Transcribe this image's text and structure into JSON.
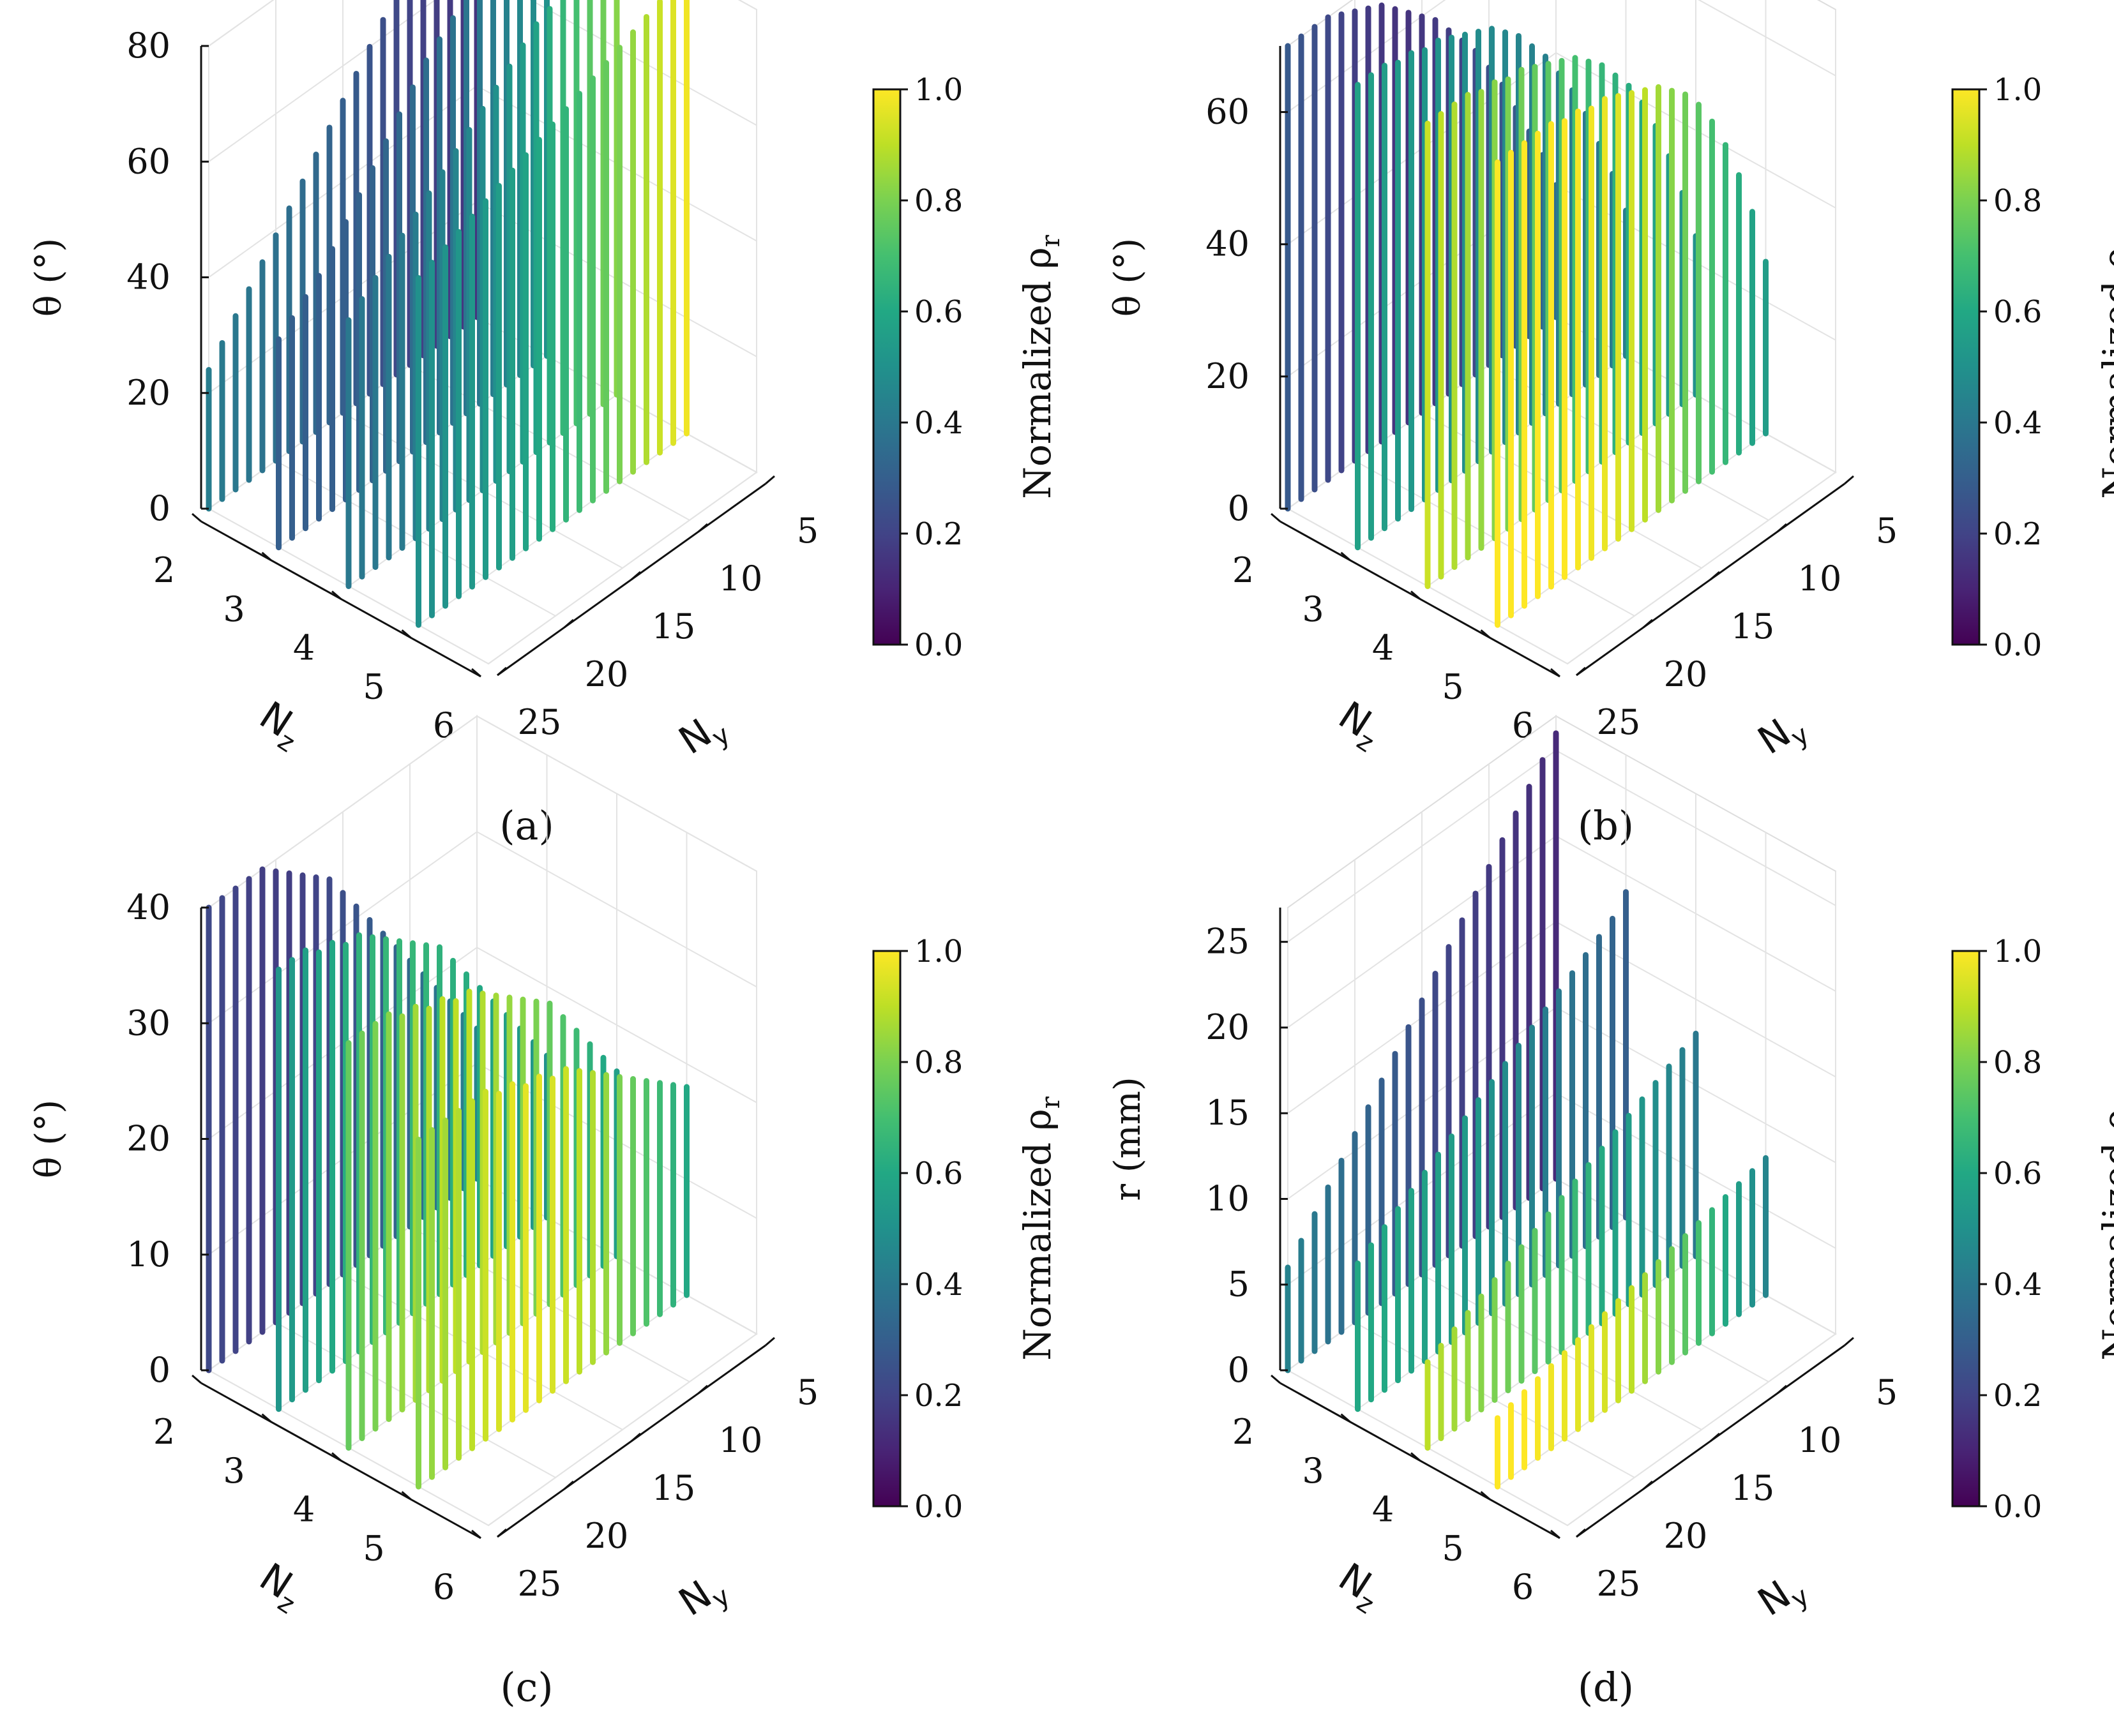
{
  "chart_data": [
    {
      "type": "3d-bar",
      "panel_label": "(a)",
      "title": "",
      "xlabel": "N",
      "xlabel_sub": "y",
      "ylabel": "N",
      "ylabel_sub": "z",
      "zlabel": "θ (°)",
      "zlim": [
        0,
        80
      ],
      "z_ticks": [
        "0",
        "20",
        "40",
        "60",
        "80"
      ],
      "ny_ticks": [
        "5",
        "10",
        "15",
        "20",
        "25"
      ],
      "nz_ticks": [
        "2",
        "3",
        "4",
        "5",
        "6"
      ],
      "colorbar": {
        "label": "Normalized ρ",
        "label_sub": "r",
        "ticks": [
          "0.0",
          "0.2",
          "0.4",
          "0.6",
          "0.8",
          "1.0"
        ]
      },
      "series": [
        {
          "name": "Nz=2",
          "ny_range": [
            5,
            25
          ],
          "values": [
            80,
            78,
            76,
            74,
            72,
            69,
            66,
            63,
            60,
            57,
            54,
            51,
            48,
            45,
            42,
            39,
            36,
            33,
            30,
            27,
            24
          ],
          "rho": [
            0.15,
            0.16,
            0.17,
            0.18,
            0.19,
            0.2,
            0.22,
            0.24,
            0.26,
            0.28,
            0.3,
            0.32,
            0.34,
            0.35,
            0.36,
            0.37,
            0.38,
            0.39,
            0.4,
            0.41,
            0.42
          ]
        },
        {
          "name": "Nz=3",
          "ny_range": [
            5,
            25
          ],
          "values": [
            80,
            79,
            78,
            77,
            76,
            74,
            72,
            70,
            68,
            66,
            63,
            60,
            57,
            54,
            51,
            48,
            45,
            42,
            40,
            38,
            36
          ],
          "rho": [
            0.5,
            0.48,
            0.46,
            0.44,
            0.42,
            0.4,
            0.39,
            0.38,
            0.37,
            0.36,
            0.35,
            0.34,
            0.33,
            0.32,
            0.31,
            0.3,
            0.3,
            0.3,
            0.3,
            0.3,
            0.3
          ]
        },
        {
          "name": "Nz=4",
          "ny_range": [
            5,
            25
          ],
          "values": [
            80,
            79,
            78,
            77,
            76,
            75,
            74,
            72,
            70,
            68,
            66,
            64,
            62,
            60,
            58,
            56,
            54,
            52,
            50,
            48,
            46
          ],
          "rho": [
            0.82,
            0.78,
            0.74,
            0.7,
            0.66,
            0.62,
            0.58,
            0.55,
            0.52,
            0.5,
            0.48,
            0.46,
            0.45,
            0.44,
            0.43,
            0.42,
            0.41,
            0.4,
            0.4,
            0.4,
            0.4
          ]
        },
        {
          "name": "Nz=5",
          "ny_range": [
            5,
            25
          ],
          "values": [
            80,
            79,
            78,
            77,
            76,
            75,
            74,
            73,
            72,
            71,
            70,
            69,
            68,
            67,
            66,
            65,
            64,
            63,
            62,
            61,
            60
          ],
          "rho": [
            0.98,
            0.95,
            0.92,
            0.88,
            0.84,
            0.8,
            0.76,
            0.72,
            0.68,
            0.65,
            0.62,
            0.6,
            0.58,
            0.56,
            0.55,
            0.54,
            0.53,
            0.52,
            0.51,
            0.5,
            0.5
          ]
        }
      ]
    },
    {
      "type": "3d-bar",
      "panel_label": "(b)",
      "title": "",
      "xlabel": "N",
      "xlabel_sub": "y",
      "ylabel": "N",
      "ylabel_sub": "z",
      "zlabel": "θ (°)",
      "zlim": [
        0,
        70
      ],
      "z_ticks": [
        "0",
        "20",
        "40",
        "60"
      ],
      "ny_ticks": [
        "5",
        "10",
        "15",
        "20",
        "25"
      ],
      "nz_ticks": [
        "2",
        "3",
        "4",
        "5",
        "6"
      ],
      "colorbar": {
        "label": "Normalized ρ",
        "label_sub": "r",
        "ticks": [
          "0.0",
          "0.2",
          "0.4",
          "0.6",
          "0.8",
          "1.0"
        ]
      },
      "series": [
        {
          "name": "Nz=2",
          "ny_range": [
            5,
            25
          ],
          "values": [
            20,
            26,
            31,
            36,
            41,
            45,
            49,
            52,
            55,
            58,
            60,
            62,
            64,
            66,
            67,
            68,
            69,
            70,
            70,
            70,
            70
          ],
          "rho": [
            0.35,
            0.32,
            0.3,
            0.28,
            0.26,
            0.24,
            0.22,
            0.2,
            0.18,
            0.17,
            0.16,
            0.15,
            0.15,
            0.16,
            0.17,
            0.18,
            0.2,
            0.22,
            0.24,
            0.26,
            0.28
          ]
        },
        {
          "name": "Nz=3",
          "ny_range": [
            5,
            25
          ],
          "values": [
            22,
            29,
            35,
            41,
            46,
            50,
            54,
            57,
            60,
            62,
            64,
            65,
            66,
            67,
            68,
            68,
            69,
            69,
            70,
            70,
            70
          ],
          "rho": [
            0.42,
            0.41,
            0.4,
            0.4,
            0.41,
            0.42,
            0.43,
            0.44,
            0.45,
            0.46,
            0.47,
            0.48,
            0.49,
            0.5,
            0.51,
            0.52,
            0.53,
            0.54,
            0.55,
            0.56,
            0.57
          ]
        },
        {
          "name": "Nz=4",
          "ny_range": [
            5,
            25
          ],
          "values": [
            24,
            32,
            39,
            45,
            50,
            54,
            57,
            60,
            62,
            64,
            65,
            66,
            67,
            68,
            68,
            69,
            69,
            70,
            70,
            70,
            70
          ],
          "rho": [
            0.5,
            0.52,
            0.55,
            0.58,
            0.6,
            0.62,
            0.64,
            0.66,
            0.68,
            0.7,
            0.72,
            0.74,
            0.76,
            0.78,
            0.8,
            0.82,
            0.84,
            0.86,
            0.88,
            0.9,
            0.92
          ]
        },
        {
          "name": "Nz=5",
          "ny_range": [
            5,
            25
          ],
          "values": [
            26,
            35,
            42,
            48,
            53,
            57,
            60,
            62,
            64,
            65,
            66,
            67,
            68,
            68,
            69,
            69,
            70,
            70,
            70,
            70,
            70
          ],
          "rho": [
            0.55,
            0.58,
            0.62,
            0.66,
            0.7,
            0.74,
            0.78,
            0.82,
            0.86,
            0.9,
            0.93,
            0.95,
            0.97,
            0.98,
            0.99,
            1.0,
            1.0,
            1.0,
            1.0,
            1.0,
            1.0
          ]
        }
      ]
    },
    {
      "type": "3d-bar",
      "panel_label": "(c)",
      "title": "",
      "xlabel": "N",
      "xlabel_sub": "y",
      "ylabel": "N",
      "ylabel_sub": "z",
      "zlabel": "θ (°)",
      "zlim": [
        0,
        40
      ],
      "z_ticks": [
        "0",
        "10",
        "20",
        "30",
        "40"
      ],
      "ny_ticks": [
        "5",
        "10",
        "15",
        "20",
        "25"
      ],
      "nz_ticks": [
        "2",
        "3",
        "4",
        "5",
        "6"
      ],
      "colorbar": {
        "label": "Normalized ρ",
        "label_sub": "r",
        "ticks": [
          "0.0",
          "0.2",
          "0.4",
          "0.6",
          "0.8",
          "1.0"
        ]
      },
      "series": [
        {
          "name": "Nz=2",
          "ny_range": [
            5,
            25
          ],
          "values": [
            13,
            15,
            17,
            19,
            21,
            23,
            25,
            27,
            29,
            31,
            33,
            35,
            36,
            37,
            38,
            39,
            40,
            40,
            40,
            40,
            40
          ],
          "rho": [
            0.45,
            0.42,
            0.4,
            0.38,
            0.36,
            0.34,
            0.32,
            0.3,
            0.28,
            0.26,
            0.24,
            0.22,
            0.2,
            0.19,
            0.18,
            0.18,
            0.18,
            0.19,
            0.2,
            0.21,
            0.22
          ]
        },
        {
          "name": "Nz=3",
          "ny_range": [
            5,
            25
          ],
          "values": [
            14,
            16,
            18,
            20,
            22,
            24,
            26,
            28,
            30,
            31,
            32,
            33,
            34,
            35,
            36,
            36,
            37,
            37,
            38,
            38,
            38
          ],
          "rho": [
            0.5,
            0.52,
            0.54,
            0.56,
            0.58,
            0.6,
            0.62,
            0.63,
            0.64,
            0.65,
            0.66,
            0.66,
            0.66,
            0.65,
            0.64,
            0.62,
            0.6,
            0.58,
            0.56,
            0.54,
            0.52
          ]
        },
        {
          "name": "Nz=4",
          "ny_range": [
            5,
            25
          ],
          "values": [
            16,
            18,
            20,
            22,
            24,
            26,
            27,
            28,
            29,
            30,
            31,
            32,
            32,
            33,
            33,
            34,
            34,
            35,
            35,
            35,
            35
          ],
          "rho": [
            0.56,
            0.6,
            0.64,
            0.68,
            0.72,
            0.76,
            0.8,
            0.82,
            0.84,
            0.86,
            0.88,
            0.9,
            0.9,
            0.9,
            0.88,
            0.86,
            0.84,
            0.82,
            0.8,
            0.78,
            0.76
          ]
        },
        {
          "name": "Nz=5",
          "ny_range": [
            5,
            25
          ],
          "values": [
            18,
            19,
            20,
            21,
            22,
            23,
            24,
            25,
            26,
            27,
            27,
            28,
            28,
            29,
            29,
            30,
            30,
            30,
            30,
            30,
            30
          ],
          "rho": [
            0.6,
            0.64,
            0.68,
            0.72,
            0.76,
            0.8,
            0.84,
            0.88,
            0.9,
            0.92,
            0.94,
            0.96,
            0.96,
            0.96,
            0.94,
            0.92,
            0.9,
            0.88,
            0.86,
            0.84,
            0.82
          ]
        }
      ]
    },
    {
      "type": "3d-bar",
      "panel_label": "(d)",
      "title": "",
      "xlabel": "N",
      "xlabel_sub": "y",
      "ylabel": "N",
      "ylabel_sub": "z",
      "zlabel": "r (mm)",
      "zlim": [
        0,
        27
      ],
      "z_ticks": [
        "0",
        "5",
        "10",
        "15",
        "20",
        "25"
      ],
      "ny_ticks": [
        "5",
        "10",
        "15",
        "20",
        "25"
      ],
      "nz_ticks": [
        "2",
        "3",
        "4",
        "5",
        "6"
      ],
      "colorbar": {
        "label": "Normalized ρ",
        "label_sub": "r",
        "ticks": [
          "0.0",
          "0.2",
          "0.4",
          "0.6",
          "0.8",
          "1.0"
        ]
      },
      "series": [
        {
          "name": "Nz=2",
          "ny_range": [
            5,
            25
          ],
          "values": [
            26,
            25,
            24,
            23,
            22,
            21,
            20,
            19,
            18,
            17,
            16,
            15,
            14,
            13,
            12,
            11,
            10,
            9,
            8,
            7,
            6
          ],
          "rho": [
            0.12,
            0.13,
            0.14,
            0.15,
            0.16,
            0.17,
            0.18,
            0.19,
            0.2,
            0.22,
            0.24,
            0.26,
            0.28,
            0.3,
            0.32,
            0.34,
            0.36,
            0.38,
            0.4,
            0.42,
            0.44
          ]
        },
        {
          "name": "Nz=3",
          "ny_range": [
            5,
            25
          ],
          "values": [
            19,
            18,
            17.5,
            17,
            16.5,
            16,
            15.5,
            15,
            14.5,
            14,
            13.5,
            13,
            12.5,
            12,
            11.5,
            11,
            10.5,
            10,
            9.5,
            9,
            8.5
          ],
          "rho": [
            0.3,
            0.32,
            0.34,
            0.36,
            0.38,
            0.4,
            0.42,
            0.44,
            0.46,
            0.48,
            0.5,
            0.52,
            0.54,
            0.55,
            0.56,
            0.57,
            0.58,
            0.59,
            0.6,
            0.6,
            0.6
          ]
        },
        {
          "name": "Nz=4",
          "ny_range": [
            5,
            25
          ],
          "values": [
            13,
            12.6,
            12.2,
            11.8,
            11.4,
            11,
            10.6,
            10.2,
            9.8,
            9.4,
            9,
            8.6,
            8.2,
            7.8,
            7.4,
            7,
            6.6,
            6.2,
            5.8,
            5.4,
            5
          ],
          "rho": [
            0.4,
            0.43,
            0.46,
            0.49,
            0.52,
            0.55,
            0.58,
            0.61,
            0.64,
            0.67,
            0.7,
            0.72,
            0.74,
            0.76,
            0.78,
            0.8,
            0.82,
            0.84,
            0.86,
            0.88,
            0.9
          ]
        },
        {
          "name": "Nz=5",
          "ny_range": [
            5,
            25
          ],
          "values": [
            8,
            7.8,
            7.6,
            7.4,
            7.2,
            7,
            6.8,
            6.6,
            6.4,
            6.2,
            6,
            5.8,
            5.6,
            5.4,
            5.2,
            5,
            4.8,
            4.6,
            4.4,
            4.2,
            4
          ],
          "rho": [
            0.45,
            0.5,
            0.55,
            0.6,
            0.65,
            0.7,
            0.74,
            0.78,
            0.82,
            0.86,
            0.9,
            0.92,
            0.94,
            0.95,
            0.96,
            0.97,
            0.98,
            0.99,
            1.0,
            1.0,
            1.0
          ]
        }
      ]
    }
  ]
}
